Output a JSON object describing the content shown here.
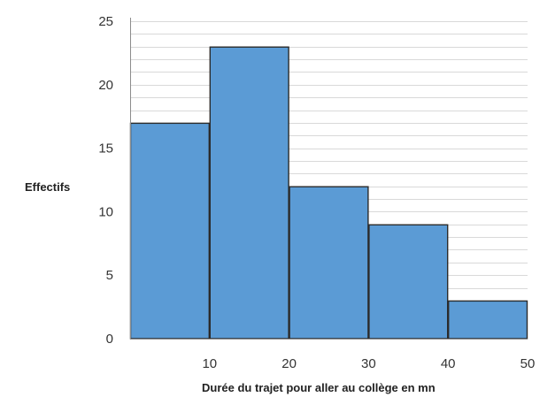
{
  "chart_data": {
    "type": "bar",
    "title": "",
    "xlabel": "Durée du trajet pour aller au collège en mn",
    "ylabel": "Effectifs",
    "bins": [
      {
        "start": 0,
        "end": 10,
        "value": 17
      },
      {
        "start": 10,
        "end": 20,
        "value": 23
      },
      {
        "start": 20,
        "end": 30,
        "value": 12
      },
      {
        "start": 30,
        "end": 40,
        "value": 9
      },
      {
        "start": 40,
        "end": 50,
        "value": 3
      }
    ],
    "x_tick_labels": [
      "10",
      "20",
      "30",
      "40",
      "50"
    ],
    "y_tick_labels": [
      "0",
      "5",
      "10",
      "15",
      "20",
      "25"
    ],
    "xlim": [
      0,
      50
    ],
    "ylim": [
      0,
      25
    ],
    "y_minor_gridline_step": 1,
    "grid": true,
    "legend": "none",
    "colors": {
      "bar_fill": "#5b9bd5",
      "bar_stroke": "#2b2b2b",
      "gridline": "#d9d9d9",
      "axis": "#8c8c8c"
    }
  }
}
